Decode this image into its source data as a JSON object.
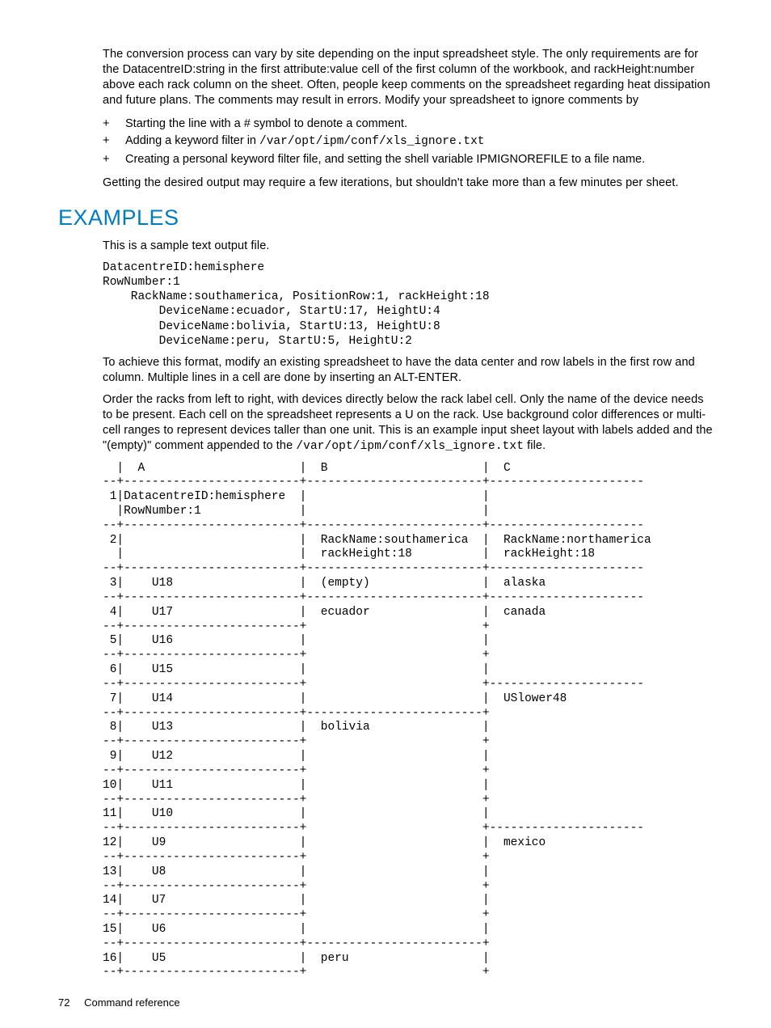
{
  "colors": {
    "text": "#000000",
    "heading": "#007cc1",
    "background": "#ffffff"
  },
  "typography": {
    "body_family": "Futura / Century Gothic",
    "body_size_pt": 11,
    "mono_family": "Courier New",
    "mono_size_pt": 11,
    "heading_size_pt": 20
  },
  "paragraphs": {
    "intro": "The conversion process can vary by site depending on the input spreadsheet style. The only requirements are for the DatacentreID:string in the first attribute:value cell of the first column of the workbook, and rackHeight:number above each rack column on the sheet. Often, people keep comments on the spreadsheet regarding heat dissipation and future plans. The comments may result in errors. Modify your spreadsheet to ignore comments by",
    "after_bullets": "Getting the desired output may require a few iterations, but shouldn't take more than a few minutes per sheet.",
    "sample_intro": "This is a sample text output file.",
    "after_code": "To achieve this format, modify an existing spreadsheet to have the data center and row labels in the first row and column. Multiple lines in a cell are done by inserting an ALT-ENTER.",
    "order_pre": "Order the racks from left to right, with devices directly below the rack label cell. Only the name of the device needs to be present. Each cell on the spreadsheet represents a U on the rack. Use background color differences or multi-cell ranges to represent devices taller than one unit. This is an example input sheet layout with labels added and the \"(empty)\" comment appended to the ",
    "order_mono": "/var/opt/ipm/conf/xls_ignore.txt",
    "order_post": " file."
  },
  "bullets": {
    "b1": "Starting the line with a # symbol to denote a comment.",
    "b2_pre": "Adding a keyword filter in ",
    "b2_mono": "/var/opt/ipm/conf/xls_ignore.txt",
    "b3": "Creating a personal keyword filter file, and setting the shell variable IPMIGNOREFILE to a file name."
  },
  "heading": "EXAMPLES",
  "code_block": "DatacentreID:hemisphere\nRowNumber:1\n    RackName:southamerica, PositionRow:1, rackHeight:18\n        DeviceName:ecuador, StartU:17, HeightU:4\n        DeviceName:bolivia, StartU:13, HeightU:8\n        DeviceName:peru, StartU:5, HeightU:2",
  "ascii_table": "  |  A                      |  B                      |  C\n--+-------------------------+-------------------------+----------------------\n 1|DatacentreID:hemisphere  |                         |\n  |RowNumber:1              |                         |\n--+-------------------------+-------------------------+----------------------\n 2|                         |  RackName:southamerica  |  RackName:northamerica\n  |                         |  rackHeight:18          |  rackHeight:18\n--+-------------------------+-------------------------+----------------------\n 3|    U18                  |  (empty)                |  alaska\n--+-------------------------+-------------------------+----------------------\n 4|    U17                  |  ecuador                |  canada\n--+-------------------------+                         +\n 5|    U16                  |                         |\n--+-------------------------+                         +\n 6|    U15                  |                         |\n--+-------------------------+                         +----------------------\n 7|    U14                  |                         |  USlower48\n--+-------------------------+-------------------------+\n 8|    U13                  |  bolivia                |\n--+-------------------------+                         +\n 9|    U12                  |                         |\n--+-------------------------+                         +\n10|    U11                  |                         |\n--+-------------------------+                         +\n11|    U10                  |                         |\n--+-------------------------+                         +----------------------\n12|    U9                   |                         |  mexico\n--+-------------------------+                         +\n13|    U8                   |                         |\n--+-------------------------+                         +\n14|    U7                   |                         |\n--+-------------------------+                         +\n15|    U6                   |                         |\n--+-------------------------+-------------------------+\n16|    U5                   |  peru                   |\n--+-------------------------+                         +",
  "footer": {
    "page_number": "72",
    "section": "Command reference"
  }
}
